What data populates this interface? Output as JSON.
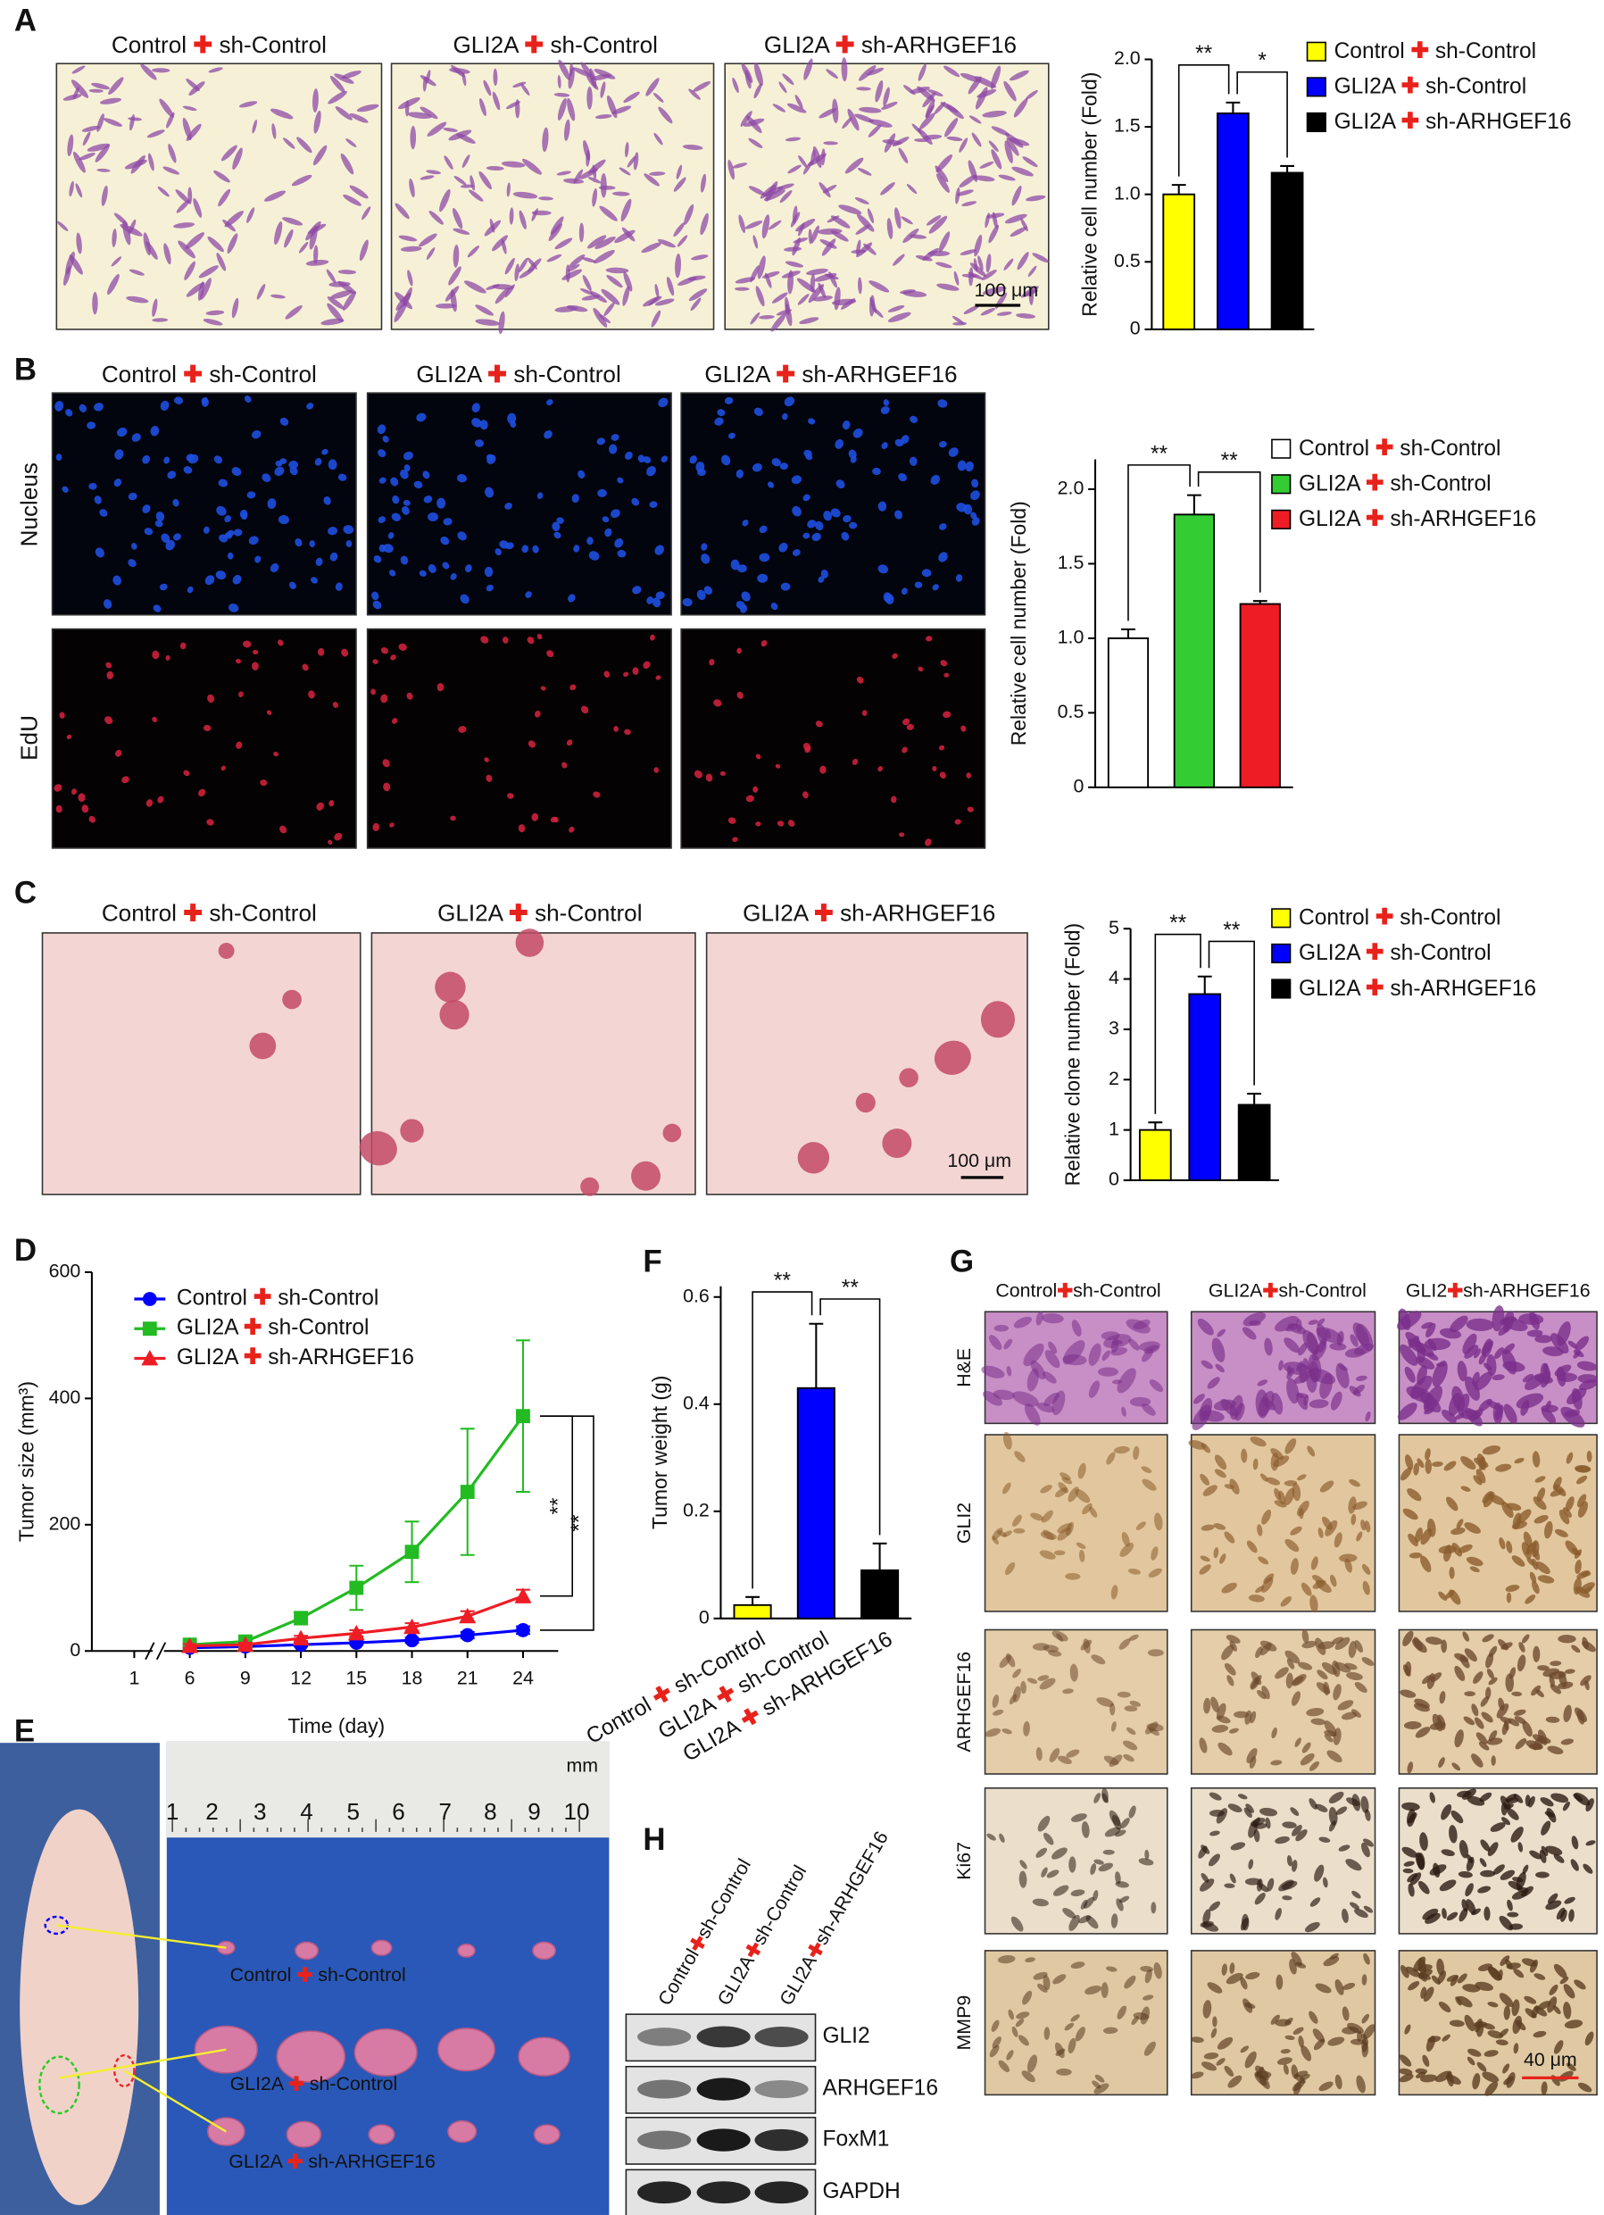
{
  "panel_labels": [
    "A",
    "B",
    "C",
    "D",
    "E",
    "F",
    "G",
    "H"
  ],
  "panel_a": {
    "image_titles": [
      "Control ✚ sh-Control",
      "GLI2A ✚ sh-Control",
      "GLI2A ✚ sh-ARHGEF16"
    ],
    "scale_bar": "100 μm"
  },
  "panel_b": {
    "image_titles": [
      "Control ✚ sh-Control",
      "GLI2A ✚ sh-Control",
      "GLI2A ✚ sh-ARHGEF16"
    ],
    "row_labels": [
      "Nucleus",
      "EdU"
    ]
  },
  "panel_c": {
    "image_titles": [
      "Control ✚ sh-Control",
      "GLI2A ✚ sh-Control",
      "GLI2A ✚ sh-ARHGEF16"
    ],
    "scale_bar": "100 μm"
  },
  "panel_e": {
    "ruler": [
      1,
      2,
      3,
      4,
      5,
      6,
      7,
      8,
      9,
      10
    ],
    "ruler_unit": "mm",
    "group_labels": [
      "Control ✚ sh-Control",
      "GLI2A ✚ sh-Control",
      "GLI2A ✚ sh-ARHGEF16"
    ]
  },
  "panel_g": {
    "column_titles": [
      "Control✚sh-Control",
      "GLI2A✚sh-Control",
      "GLI2✚sh-ARHGEF16"
    ],
    "row_labels": [
      "H&E",
      "GLI2",
      "ARHGEF16",
      "Ki67",
      "MMP9"
    ],
    "scale_bar": "40 μm"
  },
  "panel_h": {
    "lanes": [
      "Control✚sh-Control",
      "GLI2A✚sh-Control",
      "GLI2A✚sh-ARHGEF16"
    ],
    "proteins": [
      "GLI2",
      "ARHGEF16",
      "FoxM1",
      "GAPDH"
    ]
  },
  "chart_data": [
    {
      "type": "bar",
      "y_label": "Relative cell number (Fold)",
      "categories": [
        "Control ✚ sh-Control",
        "GLI2A ✚ sh-Control",
        "GLI2A ✚ sh-ARHGEF16"
      ],
      "values": [
        1.0,
        1.6,
        1.16
      ],
      "errors": [
        0.07,
        0.08,
        0.05
      ],
      "colors": [
        "#ffff00",
        "#0000ff",
        "#000000"
      ],
      "ylim": [
        0,
        2.0
      ],
      "yticks": [
        0,
        0.5,
        {
          "value": 1.0,
          "label": "1.0"
        },
        1.5,
        {
          "value": 2.0,
          "label": "2.0"
        }
      ],
      "significance": [
        "**",
        "*"
      ]
    },
    {
      "type": "bar",
      "y_label": "Relative cell number (Fold)",
      "categories": [
        "Control ✚ sh-Control",
        "GLI2A ✚ sh-Control",
        "GLI2A ✚ sh-ARHGEF16"
      ],
      "values": [
        1.0,
        1.83,
        1.23
      ],
      "errors": [
        0.06,
        0.13,
        0.02
      ],
      "colors": [
        "#ffffff",
        "#33cc33",
        "#ee1c25"
      ],
      "ylim": [
        0,
        2.2
      ],
      "yticks": [
        0,
        0.5,
        {
          "value": 1.0,
          "label": "1.0"
        },
        1.5,
        {
          "value": 2.0,
          "label": "2.0"
        }
      ],
      "significance": [
        "**",
        "**"
      ]
    },
    {
      "type": "bar",
      "y_label": "Relative clone number (Fold)",
      "categories": [
        "Control ✚ sh-Control",
        "GLI2A ✚ sh-Control",
        "GLI2A ✚ sh-ARHGEF16"
      ],
      "values": [
        1.0,
        3.7,
        1.5
      ],
      "errors": [
        0.15,
        0.35,
        0.22
      ],
      "colors": [
        "#ffff00",
        "#0000ff",
        "#000000"
      ],
      "ylim": [
        0,
        5
      ],
      "yticks": [
        0,
        1,
        2,
        3,
        4,
        5
      ],
      "significance": [
        "**",
        "**"
      ]
    },
    {
      "type": "line",
      "y_label": "Tumor size (mm³)",
      "x_label": "Time (day)",
      "categories": [
        "1",
        "6",
        "9",
        "12",
        "15",
        "18",
        "21",
        "24"
      ],
      "ylim": [
        0,
        600
      ],
      "yticks": [
        0,
        200,
        400,
        600
      ],
      "series": [
        {
          "name": "Control ✚ sh-Control",
          "color": "#0000ff",
          "marker": "circle",
          "values": [
            null,
            5,
            7,
            10,
            13,
            17,
            25,
            33
          ],
          "errors": [
            null,
            2,
            2,
            3,
            3,
            4,
            5,
            6
          ]
        },
        {
          "name": "GLI2A ✚ sh-Control",
          "color": "#22bb22",
          "marker": "square",
          "values": [
            null,
            10,
            15,
            52,
            100,
            157,
            252,
            372
          ],
          "errors": [
            null,
            5,
            8,
            10,
            35,
            48,
            100,
            120
          ]
        },
        {
          "name": "GLI2A ✚ sh-ARHGEF16",
          "color": "#ee1c25",
          "marker": "triangle",
          "values": [
            null,
            8,
            10,
            20,
            28,
            38,
            55,
            87
          ],
          "errors": [
            null,
            3,
            3,
            4,
            5,
            6,
            8,
            10
          ]
        }
      ],
      "significance": [
        "**",
        "**"
      ]
    },
    {
      "type": "bar",
      "y_label": "Tumor weight (g)",
      "categories": [
        "Control ✚ sh-Control",
        "GLI2A ✚ sh-Control",
        "GLI2A ✚ sh-ARHGEF16"
      ],
      "values": [
        0.025,
        0.43,
        0.09
      ],
      "errors": [
        0.015,
        0.12,
        0.05
      ],
      "colors": [
        "#ffff00",
        "#0000ff",
        "#000000"
      ],
      "ylim": [
        0,
        0.62
      ],
      "yticks": [
        0,
        0.2,
        0.4,
        0.6
      ],
      "significance": [
        "**",
        "**"
      ]
    }
  ]
}
